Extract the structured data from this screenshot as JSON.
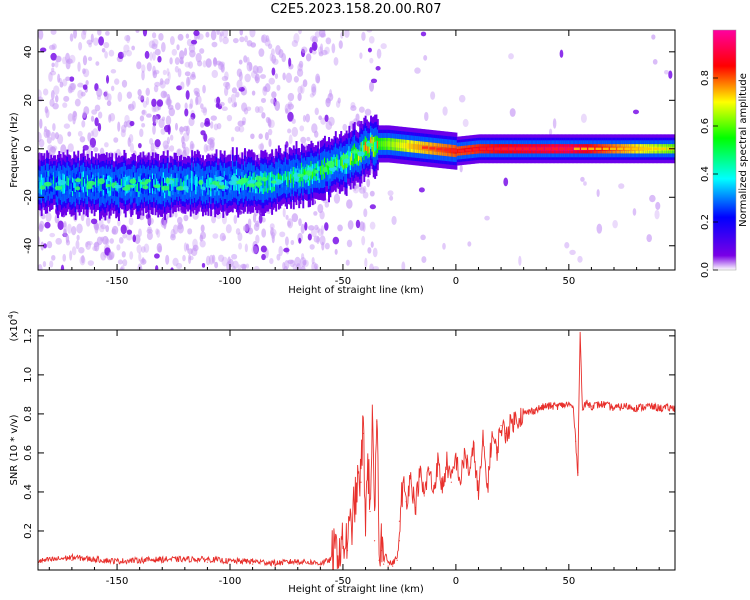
{
  "title": "C2E5.2023.158.20.00.R07",
  "colors": {
    "axis": "#000000",
    "snr_line": "#e8302c",
    "background": "#ffffff"
  },
  "chart_data": [
    {
      "type": "heatmap",
      "title": "C2E5.2023.158.20.00.R07",
      "xlabel": "Height of straight line (km)",
      "ylabel": "Frequency (Hz)",
      "xlim": [
        -185,
        97
      ],
      "ylim": [
        -50,
        49
      ],
      "x_ticks": [
        -150,
        -100,
        -50,
        0,
        50
      ],
      "y_ticks": [
        -40,
        -20,
        0,
        20,
        40
      ],
      "x_tick_labels": [
        "-150",
        "-100",
        "-50",
        "0",
        "50"
      ],
      "y_tick_labels": [
        "-40",
        "-20",
        "0",
        "20",
        "40"
      ],
      "colorbar": {
        "label": "Normalized spectral amplitude",
        "range": [
          0.0,
          1.0
        ],
        "ticks": [
          0.0,
          0.2,
          0.4,
          0.6,
          0.8
        ],
        "tick_labels": [
          "0.0",
          "0.2",
          "0.4",
          "0.6",
          "0.8"
        ],
        "colormap": [
          "#ffffff",
          "#7a00e6",
          "#0000ff",
          "#00ffff",
          "#00ff00",
          "#ffff00",
          "#ff0000",
          "#ff00a0"
        ]
      },
      "ridge_center_hz": {
        "x": [
          -185,
          -160,
          -130,
          -100,
          -90,
          -75,
          -60,
          -50,
          -42,
          -38,
          -30,
          -20,
          -10,
          0,
          10,
          20,
          50,
          97
        ],
        "y": [
          -14,
          -15,
          -15,
          -14,
          -14,
          -12,
          -9,
          -5,
          -2,
          2,
          2,
          1,
          0,
          -1,
          0,
          0,
          0,
          0
        ]
      },
      "ridge_peak_amplitude": {
        "x": [
          -185,
          -100,
          -90,
          -60,
          -45,
          -35,
          -20,
          0,
          20,
          50,
          97
        ],
        "y": [
          0.3,
          0.3,
          0.35,
          0.4,
          0.45,
          0.55,
          0.7,
          0.8,
          0.85,
          0.9,
          0.6
        ]
      }
    },
    {
      "type": "line",
      "xlabel": "Height of straight line (km)",
      "ylabel": "SNR (10 * v/v)",
      "y_scale_label": "(x10",
      "y_scale_exponent": "4",
      "y_scale_suffix": ")",
      "xlim": [
        -185,
        97
      ],
      "ylim": [
        0,
        1.23
      ],
      "x_ticks": [
        -150,
        -100,
        -50,
        0,
        50
      ],
      "y_ticks": [
        0.2,
        0.4,
        0.6,
        0.8,
        1.0,
        1.2
      ],
      "x_tick_labels": [
        "-150",
        "-100",
        "-50",
        "0",
        "50"
      ],
      "y_tick_labels": [
        "0.2",
        "0.4",
        "0.6",
        "0.8",
        "1.0",
        "1.2"
      ],
      "series": [
        {
          "x": [
            -185,
            -170,
            -150,
            -130,
            -110,
            -100,
            -90,
            -80,
            -70,
            -60,
            -52,
            -48,
            -46,
            -44,
            -42,
            -41,
            -40,
            -39,
            -38,
            -37,
            -36,
            -35,
            -34,
            -33,
            -32,
            -31,
            -30,
            -28,
            -26,
            -25,
            -24,
            -25,
            -23,
            -22,
            -20,
            -18,
            -16,
            -14,
            -12,
            -10,
            -8,
            -6,
            -4,
            -2,
            0,
            2,
            4,
            6,
            8,
            10,
            12,
            14,
            16,
            18,
            20,
            22,
            25,
            30,
            35,
            40,
            45,
            50,
            52,
            53,
            54,
            55,
            56,
            58,
            60,
            65,
            70,
            75,
            80,
            85,
            90,
            97
          ],
          "y": [
            0.03,
            0.05,
            0.03,
            0.04,
            0.04,
            0.03,
            0.03,
            0.02,
            0.03,
            0.02,
            0.05,
            0.1,
            0.2,
            0.35,
            0.45,
            0.7,
            0.2,
            0.5,
            0.3,
            0.72,
            0.15,
            0.76,
            0.05,
            0.1,
            0.03,
            0.08,
            0.02,
            0.02,
            0.05,
            0.15,
            0.4,
            0.25,
            0.45,
            0.35,
            0.48,
            0.32,
            0.5,
            0.38,
            0.52,
            0.4,
            0.55,
            0.42,
            0.55,
            0.45,
            0.58,
            0.45,
            0.6,
            0.5,
            0.62,
            0.38,
            0.66,
            0.42,
            0.7,
            0.6,
            0.74,
            0.7,
            0.76,
            0.8,
            0.82,
            0.84,
            0.84,
            0.85,
            0.83,
            0.66,
            0.5,
            1.24,
            0.82,
            0.86,
            0.84,
            0.85,
            0.83,
            0.84,
            0.83,
            0.84,
            0.83,
            0.83
          ]
        }
      ]
    }
  ]
}
